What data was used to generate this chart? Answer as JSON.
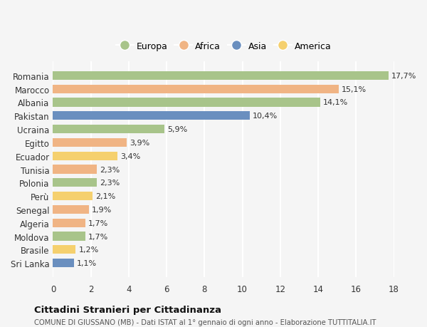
{
  "countries": [
    "Romania",
    "Marocco",
    "Albania",
    "Pakistan",
    "Ucraina",
    "Egitto",
    "Ecuador",
    "Tunisia",
    "Polonia",
    "Perù",
    "Senegal",
    "Algeria",
    "Moldova",
    "Brasile",
    "Sri Lanka"
  ],
  "values": [
    17.7,
    15.1,
    14.1,
    10.4,
    5.9,
    3.9,
    3.4,
    2.3,
    2.3,
    2.1,
    1.9,
    1.7,
    1.7,
    1.2,
    1.1
  ],
  "labels": [
    "17,7%",
    "15,1%",
    "14,1%",
    "10,4%",
    "5,9%",
    "3,9%",
    "3,4%",
    "2,3%",
    "2,3%",
    "2,1%",
    "1,9%",
    "1,7%",
    "1,7%",
    "1,2%",
    "1,1%"
  ],
  "continents": [
    "Europa",
    "Africa",
    "Europa",
    "Asia",
    "Europa",
    "Africa",
    "America",
    "Africa",
    "Europa",
    "America",
    "Africa",
    "Africa",
    "Europa",
    "America",
    "Asia"
  ],
  "colors": {
    "Europa": "#a8c48a",
    "Africa": "#f0b484",
    "Asia": "#6a8fbf",
    "America": "#f5d06e"
  },
  "legend_order": [
    "Europa",
    "Africa",
    "Asia",
    "America"
  ],
  "title1": "Cittadini Stranieri per Cittadinanza",
  "title2": "COMUNE DI GIUSSANO (MB) - Dati ISTAT al 1° gennaio di ogni anno - Elaborazione TUTTITALIA.IT",
  "xlim": [
    0,
    18
  ],
  "xticks": [
    0,
    2,
    4,
    6,
    8,
    10,
    12,
    14,
    16,
    18
  ],
  "bg_color": "#f5f5f5",
  "grid_color": "#ffffff"
}
